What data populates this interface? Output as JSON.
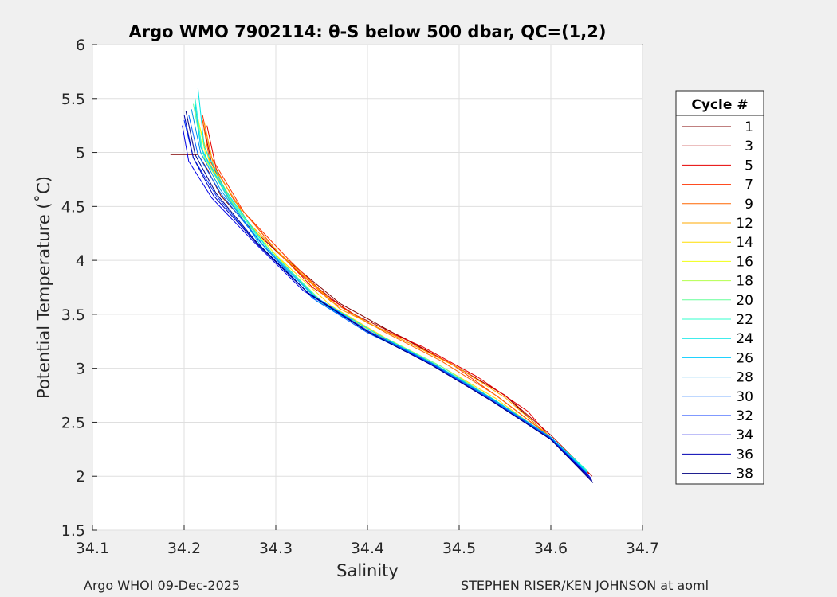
{
  "chart_data": {
    "type": "line",
    "title": "Argo WMO 7902114: θ-S below 500 dbar,  QC=(1,2)",
    "xlabel": "Salinity",
    "ylabel": "Potential Temperature (˚C)",
    "xlim": [
      34.1,
      34.7
    ],
    "ylim": [
      1.5,
      6
    ],
    "xticks": [
      "34.1",
      "34.2",
      "34.3",
      "34.4",
      "34.5",
      "34.6",
      "34.7"
    ],
    "yticks": [
      "1.5",
      "2",
      "2.5",
      "3",
      "3.5",
      "4",
      "4.5",
      "5",
      "5.5",
      "6"
    ],
    "grid": true,
    "legend": {
      "title": "Cycle #",
      "placement": "right",
      "entries": [
        {
          "label": "1",
          "color": "#800000"
        },
        {
          "label": "3",
          "color": "#b30000"
        },
        {
          "label": "5",
          "color": "#e60000"
        },
        {
          "label": "7",
          "color": "#ff3300"
        },
        {
          "label": "9",
          "color": "#ff6600"
        },
        {
          "label": "12",
          "color": "#ffaa00"
        },
        {
          "label": "14",
          "color": "#ffdd00"
        },
        {
          "label": "16",
          "color": "#f0ff10"
        },
        {
          "label": "18",
          "color": "#b3ff4d"
        },
        {
          "label": "20",
          "color": "#66ff99"
        },
        {
          "label": "22",
          "color": "#33ffcc"
        },
        {
          "label": "24",
          "color": "#00e6e6"
        },
        {
          "label": "26",
          "color": "#00ccff"
        },
        {
          "label": "28",
          "color": "#0099e6"
        },
        {
          "label": "30",
          "color": "#0066ff"
        },
        {
          "label": "32",
          "color": "#0033ff"
        },
        {
          "label": "34",
          "color": "#0000e6"
        },
        {
          "label": "36",
          "color": "#0000b3"
        },
        {
          "label": "38",
          "color": "#000080"
        }
      ]
    },
    "series": [
      {
        "name": "1",
        "x": [
          34.185,
          34.215,
          34.225,
          34.24,
          34.27,
          34.31,
          34.37,
          34.43,
          34.5,
          34.55,
          34.6,
          34.64
        ],
        "y": [
          4.98,
          4.98,
          4.85,
          4.6,
          4.32,
          4.02,
          3.6,
          3.32,
          3.0,
          2.75,
          2.35,
          2.02
        ]
      },
      {
        "name": "3",
        "x": [
          34.22,
          34.23,
          34.25,
          34.28,
          34.33,
          34.38,
          34.44,
          34.5,
          34.55,
          34.6,
          34.645
        ],
        "y": [
          5.3,
          4.9,
          4.55,
          4.25,
          3.85,
          3.52,
          3.28,
          3.0,
          2.75,
          2.38,
          2.0
        ]
      },
      {
        "name": "5",
        "x": [
          34.225,
          34.235,
          34.255,
          34.3,
          34.34,
          34.4,
          34.46,
          34.52,
          34.575,
          34.6,
          34.642
        ],
        "y": [
          5.25,
          4.85,
          4.55,
          4.1,
          3.75,
          3.42,
          3.2,
          2.92,
          2.6,
          2.35,
          2.02
        ]
      },
      {
        "name": "7",
        "x": [
          34.22,
          34.23,
          34.265,
          34.315,
          34.37,
          34.43,
          34.49,
          34.545,
          34.6,
          34.64
        ],
        "y": [
          5.35,
          4.95,
          4.45,
          4.0,
          3.55,
          3.3,
          3.05,
          2.72,
          2.36,
          2.02
        ]
      },
      {
        "name": "9",
        "x": [
          34.22,
          34.228,
          34.26,
          34.305,
          34.36,
          34.42,
          34.48,
          34.54,
          34.6,
          34.64
        ],
        "y": [
          5.3,
          4.92,
          4.5,
          4.05,
          3.62,
          3.33,
          3.07,
          2.75,
          2.36,
          2.02
        ]
      },
      {
        "name": "12",
        "x": [
          34.222,
          34.232,
          34.27,
          34.31,
          34.37,
          34.43,
          34.5,
          34.55,
          34.6,
          34.64
        ],
        "y": [
          5.28,
          4.88,
          4.35,
          4.02,
          3.55,
          3.3,
          3.0,
          2.73,
          2.36,
          2.03
        ]
      },
      {
        "name": "14",
        "x": [
          34.215,
          34.228,
          34.26,
          34.3,
          34.36,
          34.42,
          34.48,
          34.54,
          34.6,
          34.64
        ],
        "y": [
          5.3,
          4.9,
          4.45,
          4.05,
          3.58,
          3.28,
          3.02,
          2.72,
          2.35,
          2.04
        ]
      },
      {
        "name": "16",
        "x": [
          34.215,
          34.225,
          34.255,
          34.3,
          34.35,
          34.42,
          34.48,
          34.54,
          34.6,
          34.64
        ],
        "y": [
          5.32,
          4.92,
          4.5,
          4.05,
          3.6,
          3.27,
          3.0,
          2.7,
          2.35,
          2.04
        ]
      },
      {
        "name": "18",
        "x": [
          34.212,
          34.222,
          34.25,
          34.295,
          34.35,
          34.41,
          34.48,
          34.54,
          34.6,
          34.64
        ],
        "y": [
          5.4,
          4.95,
          4.55,
          4.08,
          3.62,
          3.32,
          3.02,
          2.7,
          2.35,
          2.05
        ]
      },
      {
        "name": "20",
        "x": [
          34.21,
          34.22,
          34.25,
          34.295,
          34.35,
          34.41,
          34.48,
          34.54,
          34.6,
          34.638
        ],
        "y": [
          5.45,
          5.0,
          4.55,
          4.08,
          3.62,
          3.32,
          3.02,
          2.7,
          2.35,
          2.06
        ]
      },
      {
        "name": "22",
        "x": [
          34.212,
          34.22,
          34.248,
          34.29,
          34.35,
          34.41,
          34.48,
          34.54,
          34.6,
          34.64
        ],
        "y": [
          5.5,
          5.0,
          4.6,
          4.1,
          3.6,
          3.3,
          3.0,
          2.7,
          2.36,
          2.05
        ]
      },
      {
        "name": "24",
        "x": [
          34.215,
          34.222,
          34.245,
          34.29,
          34.345,
          34.41,
          34.475,
          34.54,
          34.6,
          34.64
        ],
        "y": [
          5.6,
          5.05,
          4.65,
          4.12,
          3.65,
          3.32,
          3.03,
          2.7,
          2.36,
          2.04
        ]
      },
      {
        "name": "26",
        "x": [
          34.212,
          34.218,
          34.245,
          34.285,
          34.345,
          34.4,
          34.47,
          34.535,
          34.6,
          34.64
        ],
        "y": [
          5.45,
          5.05,
          4.62,
          4.12,
          3.62,
          3.35,
          3.05,
          2.72,
          2.36,
          2.03
        ]
      },
      {
        "name": "28",
        "x": [
          34.208,
          34.218,
          34.24,
          34.285,
          34.34,
          34.4,
          34.47,
          34.535,
          34.6,
          34.64
        ],
        "y": [
          5.4,
          5.0,
          4.65,
          4.15,
          3.68,
          3.35,
          3.05,
          2.72,
          2.36,
          2.02
        ]
      },
      {
        "name": "30",
        "x": [
          34.205,
          34.215,
          34.24,
          34.285,
          34.34,
          34.4,
          34.47,
          34.535,
          34.6,
          34.642
        ],
        "y": [
          5.35,
          4.98,
          4.62,
          4.15,
          3.65,
          3.33,
          3.04,
          2.71,
          2.35,
          2.0
        ]
      },
      {
        "name": "32",
        "x": [
          34.2,
          34.21,
          34.235,
          34.28,
          34.335,
          34.4,
          34.47,
          34.535,
          34.6,
          34.642
        ],
        "y": [
          5.3,
          4.95,
          4.6,
          4.15,
          3.7,
          3.35,
          3.04,
          2.71,
          2.35,
          2.0
        ]
      },
      {
        "name": "34",
        "x": [
          34.198,
          34.205,
          34.23,
          34.275,
          34.33,
          34.4,
          34.47,
          34.535,
          34.6,
          34.644
        ],
        "y": [
          5.25,
          4.92,
          4.58,
          4.18,
          3.72,
          3.34,
          3.03,
          2.7,
          2.34,
          1.98
        ]
      },
      {
        "name": "36",
        "x": [
          34.2,
          34.21,
          34.232,
          34.28,
          34.335,
          34.4,
          34.47,
          34.535,
          34.6,
          34.645
        ],
        "y": [
          5.35,
          4.95,
          4.6,
          4.15,
          3.7,
          3.34,
          3.03,
          2.7,
          2.34,
          1.96
        ]
      },
      {
        "name": "38",
        "x": [
          34.202,
          34.212,
          34.235,
          34.28,
          34.335,
          34.4,
          34.47,
          34.535,
          34.6,
          34.646
        ],
        "y": [
          5.38,
          4.98,
          4.62,
          4.16,
          3.7,
          3.34,
          3.03,
          2.7,
          2.34,
          1.94
        ]
      }
    ]
  },
  "footer": {
    "left": "Argo WHOI 09-Dec-2025",
    "right": "STEPHEN RISER/KEN JOHNSON at aoml"
  }
}
